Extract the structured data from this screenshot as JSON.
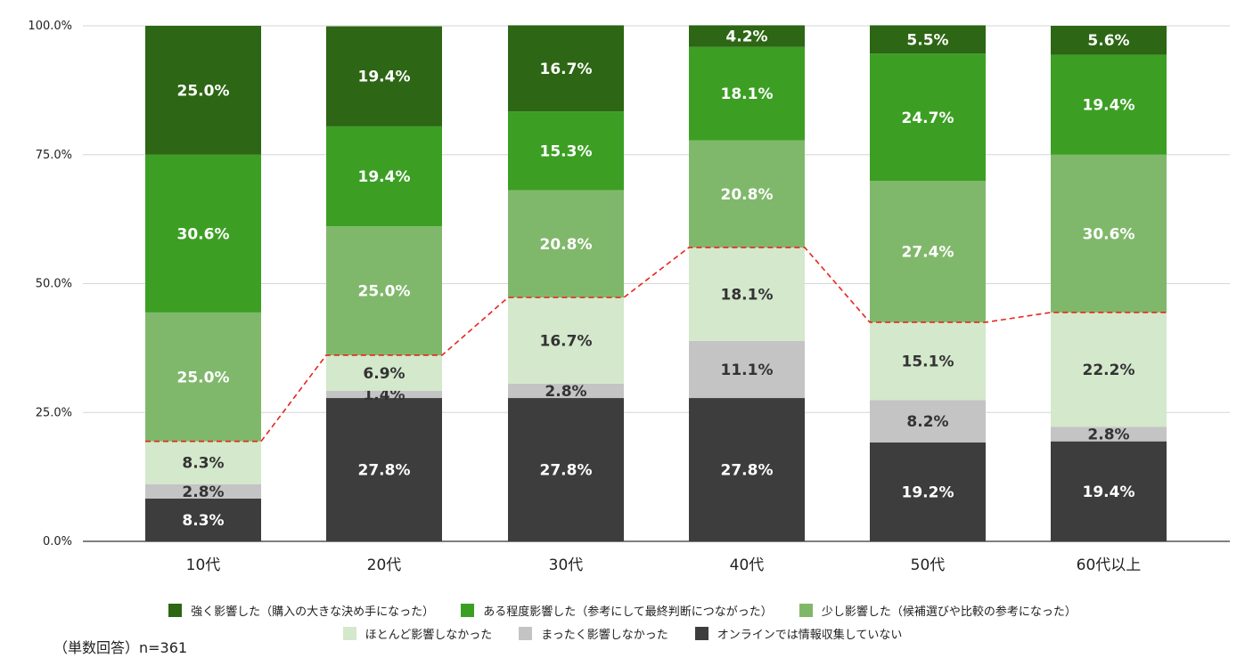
{
  "chart_data": {
    "type": "bar",
    "stacked": true,
    "categories": [
      "10代",
      "20代",
      "30代",
      "40代",
      "50代",
      "60代以上"
    ],
    "series": [
      {
        "name": "オンラインでは情報収集していない",
        "color": "#3d3d3d",
        "label_color": "#ffffff",
        "values": [
          8.3,
          27.8,
          27.8,
          27.8,
          19.2,
          19.4
        ]
      },
      {
        "name": "まったく影響しなかった",
        "color": "#c4c4c4",
        "label_color": "#333333",
        "values": [
          2.8,
          1.4,
          2.8,
          11.1,
          8.2,
          2.8
        ]
      },
      {
        "name": "ほとんど影響しなかった",
        "color": "#d4e8cc",
        "label_color": "#333333",
        "values": [
          8.3,
          6.9,
          16.7,
          18.1,
          15.1,
          22.2
        ]
      },
      {
        "name": "少し影響した（候補選びや比較の参考になった）",
        "color": "#80b86b",
        "label_color": "#ffffff",
        "values": [
          25.0,
          25.0,
          20.8,
          20.8,
          27.4,
          30.6
        ]
      },
      {
        "name": "ある程度影響した（参考にして最終判断につながった）",
        "color": "#3c9f24",
        "label_color": "#ffffff",
        "values": [
          30.6,
          19.4,
          15.3,
          18.1,
          24.7,
          19.4
        ]
      },
      {
        "name": "強く影響した（購入の大きな決め手になった）",
        "color": "#2d6614",
        "label_color": "#ffffff",
        "values": [
          25.0,
          19.4,
          16.7,
          4.2,
          5.5,
          5.6
        ]
      }
    ],
    "data_labels": [
      [
        "8.3%",
        "27.8%",
        "27.8%",
        "27.8%",
        "19.2%",
        "19.4%"
      ],
      [
        "2.8%",
        "1.4%",
        "2.8%",
        "11.1%",
        "8.2%",
        "2.8%"
      ],
      [
        "8.3%",
        "6.9%",
        "16.7%",
        "18.1%",
        "15.1%",
        "22.2%"
      ],
      [
        "25.0%",
        "25.0%",
        "20.8%",
        "20.8%",
        "27.4%",
        "30.6%"
      ],
      [
        "30.6%",
        "19.4%",
        "15.3%",
        "18.1%",
        "24.7%",
        "19.4%"
      ],
      [
        "25.0%",
        "19.4%",
        "16.7%",
        "4.2%",
        "5.5%",
        "5.6%"
      ]
    ],
    "reference_line": {
      "values": [
        19.4,
        36.1,
        47.3,
        57.0,
        42.5,
        44.4
      ],
      "color": "#e8241c",
      "style": "dashed"
    },
    "ylim": [
      0,
      100
    ],
    "yticks": [
      0,
      25,
      50,
      75,
      100
    ],
    "ytick_labels": [
      "0.0%",
      "25.0%",
      "50.0%",
      "75.0%",
      "100.0%"
    ],
    "grid": true,
    "legend_position": "bottom",
    "legend_order": [
      5,
      4,
      3,
      2,
      1,
      0
    ]
  },
  "note": "（単数回答）n=361"
}
